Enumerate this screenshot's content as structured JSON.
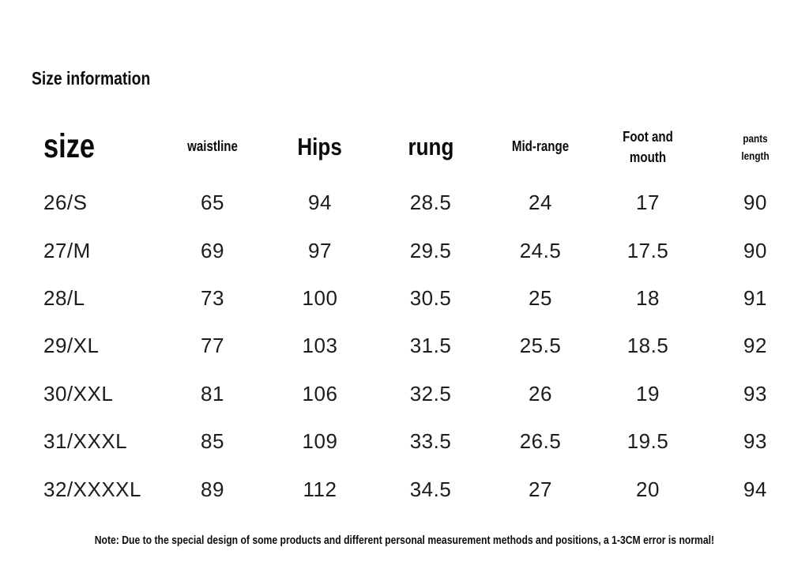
{
  "page": {
    "title": "Size information",
    "note": "Note: Due to the special design of some products and different personal measurement methods and positions, a 1-3CM error is normal!"
  },
  "chart_data": {
    "type": "table",
    "title": "Size information",
    "columns": [
      "size",
      "waistline",
      "Hips",
      "rung",
      "Mid-range",
      "Foot and mouth",
      "pants length"
    ],
    "rows": [
      [
        "26/S",
        "65",
        "94",
        "28.5",
        "24",
        "17",
        "90"
      ],
      [
        "27/M",
        "69",
        "97",
        "29.5",
        "24.5",
        "17.5",
        "90"
      ],
      [
        "28/L",
        "73",
        "100",
        "30.5",
        "25",
        "18",
        "91"
      ],
      [
        "29/XL",
        "77",
        "103",
        "31.5",
        "25.5",
        "18.5",
        "92"
      ],
      [
        "30/XXL",
        "81",
        "106",
        "32.5",
        "26",
        "19",
        "93"
      ],
      [
        "31/XXXL",
        "85",
        "109",
        "33.5",
        "26.5",
        "19.5",
        "93"
      ],
      [
        "32/XXXXL",
        "89",
        "112",
        "34.5",
        "27",
        "20",
        "94"
      ]
    ],
    "layout": {
      "grid": "off",
      "text_color": "#1c1c1c",
      "background": "#ffffff"
    }
  }
}
